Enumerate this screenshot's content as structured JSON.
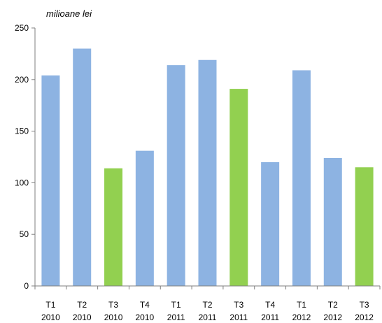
{
  "chart_data": {
    "type": "bar",
    "title": "",
    "ylabel": "milioane lei",
    "xlabel": "",
    "ylim": [
      0,
      250
    ],
    "yticks": [
      0,
      50,
      100,
      150,
      200,
      250
    ],
    "grid": false,
    "legend": "none",
    "categories": [
      [
        "T1",
        "2010"
      ],
      [
        "T2",
        "2010"
      ],
      [
        "T3",
        "2010"
      ],
      [
        "T4",
        "2010"
      ],
      [
        "T1",
        "2011"
      ],
      [
        "T2",
        "2011"
      ],
      [
        "T3",
        "2011"
      ],
      [
        "T4",
        "2011"
      ],
      [
        "T1",
        "2012"
      ],
      [
        "T2",
        "2012"
      ],
      [
        "T3",
        "2012"
      ]
    ],
    "values": [
      204,
      230,
      114,
      131,
      214,
      219,
      191,
      120,
      209,
      124,
      115
    ],
    "bar_colors": [
      "#8db3e2",
      "#8db3e2",
      "#92d050",
      "#8db3e2",
      "#8db3e2",
      "#8db3e2",
      "#92d050",
      "#8db3e2",
      "#8db3e2",
      "#8db3e2",
      "#92d050"
    ],
    "axis_color": "#7f7f7f"
  }
}
